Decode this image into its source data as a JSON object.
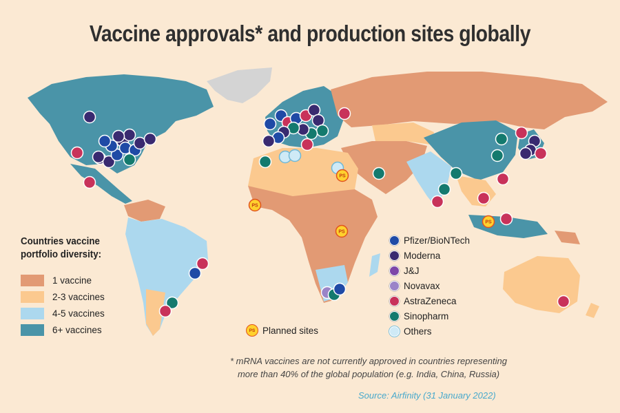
{
  "title": "Vaccine approvals* and production sites globally",
  "legend": {
    "title_line1": "Countries vaccine",
    "title_line2": "portfolio diversity:",
    "items": [
      {
        "label": "1 vaccine",
        "color": "#e29a74"
      },
      {
        "label": "2-3 vaccines",
        "color": "#fbc98f"
      },
      {
        "label": "4-5 vaccines",
        "color": "#acd8ee"
      },
      {
        "label": "6+ vaccines",
        "color": "#4a94a8"
      }
    ]
  },
  "producers": [
    {
      "label": "Pfizer/BioNTech",
      "color": "#1f4aa6"
    },
    {
      "label": "Moderna",
      "color": "#392a70"
    },
    {
      "label": "J&J",
      "color": "#7d47a8"
    },
    {
      "label": "Novavax",
      "color": "#9a84c8"
    },
    {
      "label": "AstraZeneca",
      "color": "#c8325a"
    },
    {
      "label": "Sinopharm",
      "color": "#147a6e"
    },
    {
      "label": "Others",
      "color": "#cfeaf6"
    }
  ],
  "planned": {
    "label": "Planned sites",
    "badge": "PS"
  },
  "footnote": {
    "line1": "* mRNA vaccines are not currently approved in countries representing",
    "line2": "more than 40% of the global population (e.g. India, China, Russia)"
  },
  "source": "Source: Airfinity (31 January 2022)"
}
